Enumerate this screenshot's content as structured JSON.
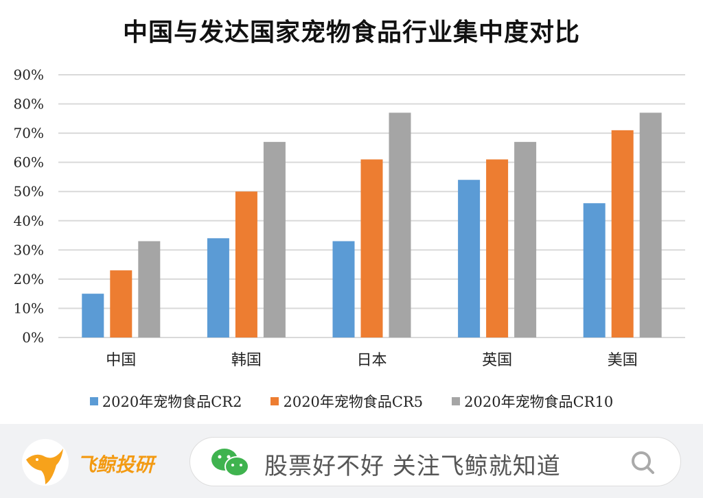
{
  "chart_data": {
    "type": "bar",
    "title": "中国与发达国家宠物食品行业集中度对比",
    "categories": [
      "中国",
      "韩国",
      "日本",
      "英国",
      "美国"
    ],
    "series": [
      {
        "name": "2020年宠物食品CR2",
        "color": "#5b9bd5",
        "values": [
          15,
          34,
          33,
          54,
          46
        ]
      },
      {
        "name": "2020年宠物食品CR5",
        "color": "#ed7d31",
        "values": [
          23,
          50,
          61,
          61,
          71
        ]
      },
      {
        "name": "2020年宠物食品CR10",
        "color": "#a5a5a5",
        "values": [
          33,
          67,
          77,
          67,
          77
        ]
      }
    ],
    "yticks": [
      "0%",
      "10%",
      "20%",
      "30%",
      "40%",
      "50%",
      "60%",
      "70%",
      "80%",
      "90%"
    ],
    "ylim": [
      0,
      90
    ],
    "y_unit": "%",
    "grid": true,
    "legend_position": "bottom"
  },
  "footer": {
    "brand": "飞鲸投研",
    "search_text": "股票好不好 关注飞鲸就知道",
    "icons": [
      "whale-logo-icon",
      "wechat-icon",
      "search-icon"
    ]
  }
}
